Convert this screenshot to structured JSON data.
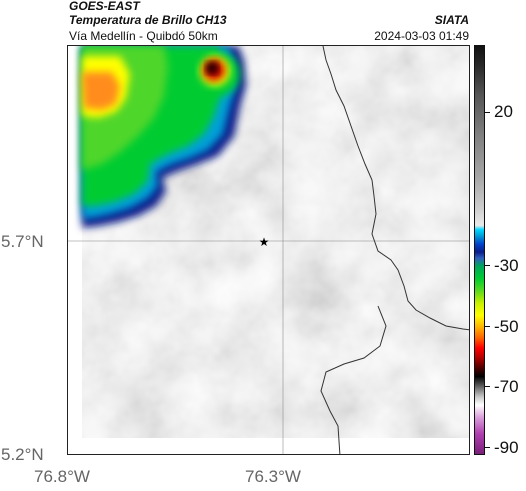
{
  "header": {
    "satellite": "GOES-EAST",
    "product": "Temperatura de Brillo CH13",
    "route": "Vía Medellín - Quibdó 50km",
    "organization": "SIATA",
    "timestamp": "2024-03-03 01:49"
  },
  "axes": {
    "lat_ticks": [
      "5.7°N",
      "5.2°N"
    ],
    "lon_ticks": [
      "76.8°W",
      "76.3°W"
    ]
  },
  "colorbar": {
    "labels": [
      "20",
      "-30",
      "-50",
      "-70",
      "-90"
    ],
    "colors": [
      "#111111",
      "#808080",
      "#eaeaea",
      "#00d8ff",
      "#0044cc",
      "#00cc33",
      "#ffff00",
      "#ff0000",
      "#000000",
      "#ffffff",
      "#b040b0"
    ]
  },
  "map": {
    "marker_icon": "star-icon",
    "cloud_colors": [
      "#0a1d8a",
      "#00a0d8",
      "#00cc33",
      "#ffff00",
      "#ff8c1a",
      "#cc0000",
      "#000000"
    ]
  }
}
